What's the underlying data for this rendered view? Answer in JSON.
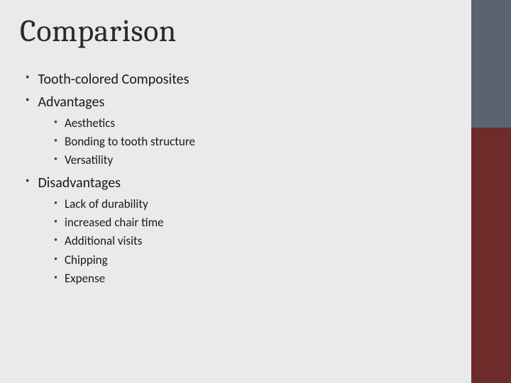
{
  "slide": {
    "title": "Comparison",
    "background_color": "#e8eaec",
    "sidebar": {
      "top_color": "#5a6470",
      "bottom_color": "#6d2c2a",
      "width": 56,
      "split_height": 180
    },
    "bullet_color": "#6d2c2a",
    "title_font": "Cambria",
    "title_fontsize": 44,
    "body_font": "Calibri",
    "l1_fontsize": 20,
    "l2_fontsize": 17,
    "items": [
      {
        "level": 1,
        "text": "Tooth-colored Composites"
      },
      {
        "level": 1,
        "text": "Advantages"
      },
      {
        "level": 2,
        "text": "Aesthetics"
      },
      {
        "level": 2,
        "text": "Bonding to tooth structure"
      },
      {
        "level": 2,
        "text": "Versatility"
      },
      {
        "level": 1,
        "text": "Disadvantages"
      },
      {
        "level": 2,
        "text": "Lack of durability"
      },
      {
        "level": 2,
        "text": "increased chair time"
      },
      {
        "level": 2,
        "text": "Additional visits"
      },
      {
        "level": 2,
        "text": "Chipping"
      },
      {
        "level": 2,
        "text": "Expense"
      }
    ]
  }
}
